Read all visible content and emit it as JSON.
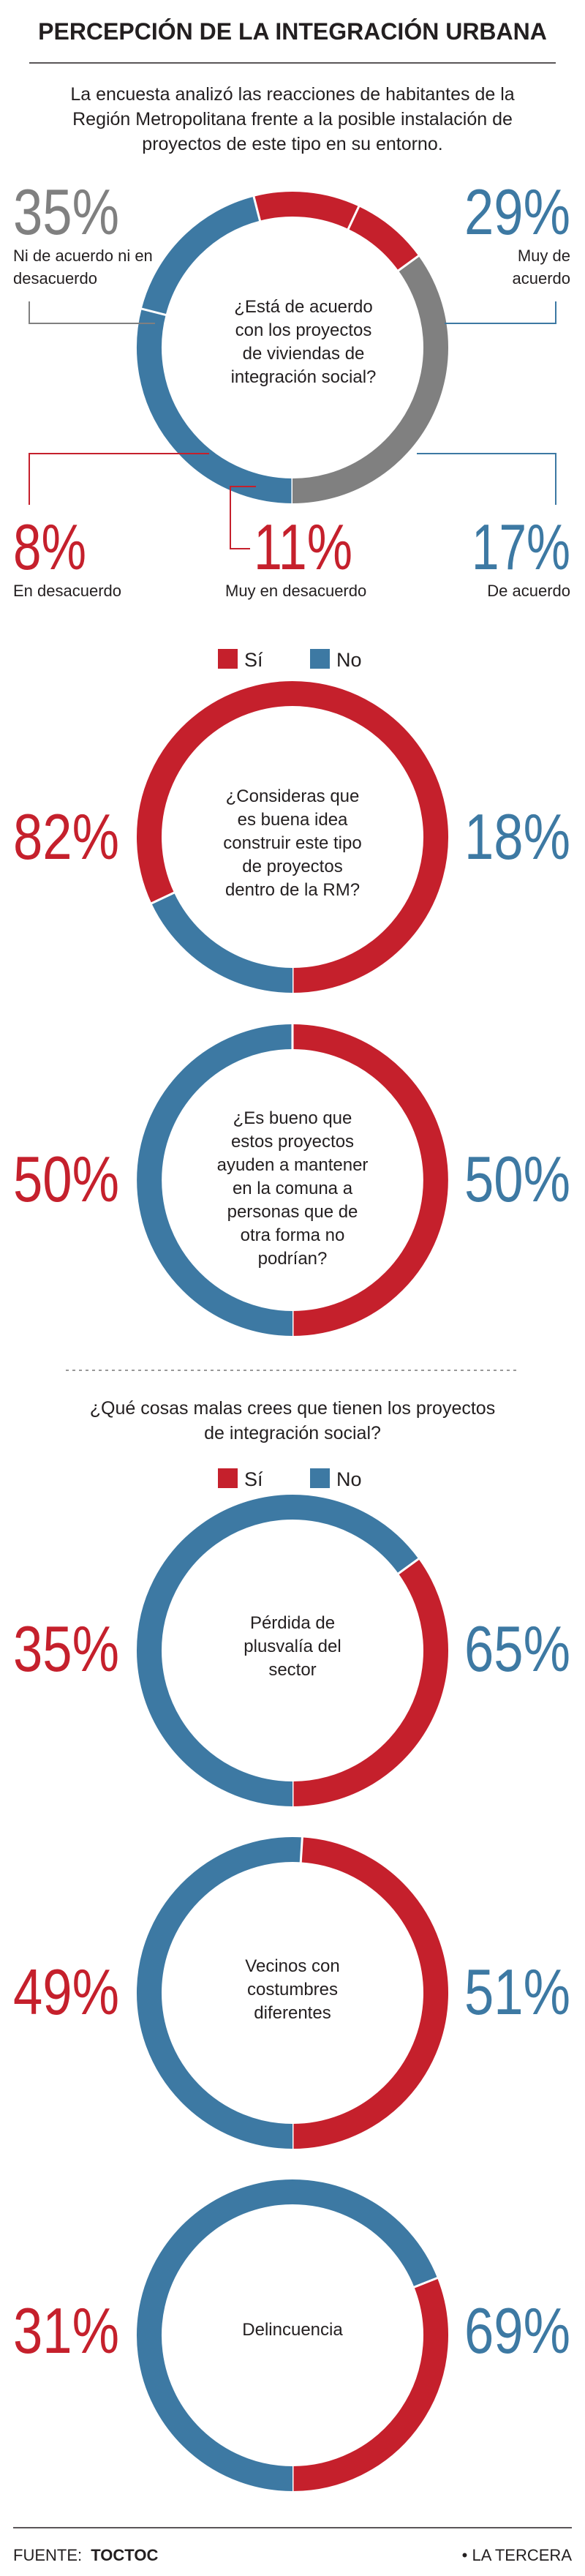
{
  "title": "PERCEPCIÓN DE LA INTEGRACIÓN URBANA",
  "intro": [
    "La encuesta analizó las reacciones de habitantes de la",
    "Región Metropolitana frente a la posible instalación de",
    "proyectos de este tipo en su entorno."
  ],
  "colors": {
    "red": "#c5202c",
    "blue": "#3d79a3",
    "gray": "#808080",
    "text": "#231f20"
  },
  "legend": {
    "yes": "Sí",
    "no": "No"
  },
  "section2_heading": [
    "¿Qué cosas malas crees que tienen los proyectos",
    "de integración social?"
  ],
  "chart_data": [
    {
      "type": "pie",
      "question": [
        "¿Está de acuerdo",
        "con los proyectos",
        "de viviendas de",
        "integración social?"
      ],
      "categories": [
        "Muy de acuerdo",
        "De acuerdo",
        "Muy en desacuerdo",
        "En desacuerdo",
        "Ni de acuerdo ni en desacuerdo"
      ],
      "values": [
        29,
        17,
        11,
        8,
        35
      ],
      "colors": [
        "#3d79a3",
        "#3d79a3",
        "#c5202c",
        "#c5202c",
        "#808080"
      ],
      "labels": [
        {
          "pct": "29%",
          "text": [
            "Muy de",
            "acuerdo"
          ]
        },
        {
          "pct": "17%",
          "text": [
            "De acuerdo"
          ]
        },
        {
          "pct": "11%",
          "text": [
            "Muy en desacuerdo"
          ]
        },
        {
          "pct": "8%",
          "text": [
            "En desacuerdo"
          ]
        },
        {
          "pct": "35%",
          "text": [
            "Ni de acuerdo ni en",
            "desacuerdo"
          ]
        }
      ]
    },
    {
      "type": "pie",
      "question": [
        "¿Consideras que",
        "es buena idea",
        "construir este tipo",
        "de proyectos",
        "dentro de la RM?"
      ],
      "categories": [
        "Sí",
        "No"
      ],
      "values": [
        82,
        18
      ],
      "labels": [
        {
          "pct": "82%"
        },
        {
          "pct": "18%"
        }
      ]
    },
    {
      "type": "pie",
      "question": [
        "¿Es bueno que",
        "estos proyectos",
        "ayuden a mantener",
        "en la comuna a",
        "personas que de",
        "otra forma no",
        "podrían?"
      ],
      "categories": [
        "Sí",
        "No"
      ],
      "values": [
        50,
        50
      ],
      "labels": [
        {
          "pct": "50%"
        },
        {
          "pct": "50%"
        }
      ]
    },
    {
      "type": "pie",
      "question": [
        "Pérdida de",
        "plusvalía del",
        "sector"
      ],
      "categories": [
        "Sí",
        "No"
      ],
      "values": [
        35,
        65
      ],
      "labels": [
        {
          "pct": "35%"
        },
        {
          "pct": "65%"
        }
      ]
    },
    {
      "type": "pie",
      "question": [
        "Vecinos con",
        "costumbres",
        "diferentes"
      ],
      "categories": [
        "Sí",
        "No"
      ],
      "values": [
        49,
        51
      ],
      "labels": [
        {
          "pct": "49%"
        },
        {
          "pct": "51%"
        }
      ]
    },
    {
      "type": "pie",
      "question": [
        "Delincuencia"
      ],
      "categories": [
        "Sí",
        "No"
      ],
      "values": [
        31,
        69
      ],
      "labels": [
        {
          "pct": "31%"
        },
        {
          "pct": "69%"
        }
      ]
    }
  ],
  "footer": {
    "source_label": "FUENTE:",
    "source": "TOCTOC",
    "publisher": "• LA TERCERA"
  }
}
